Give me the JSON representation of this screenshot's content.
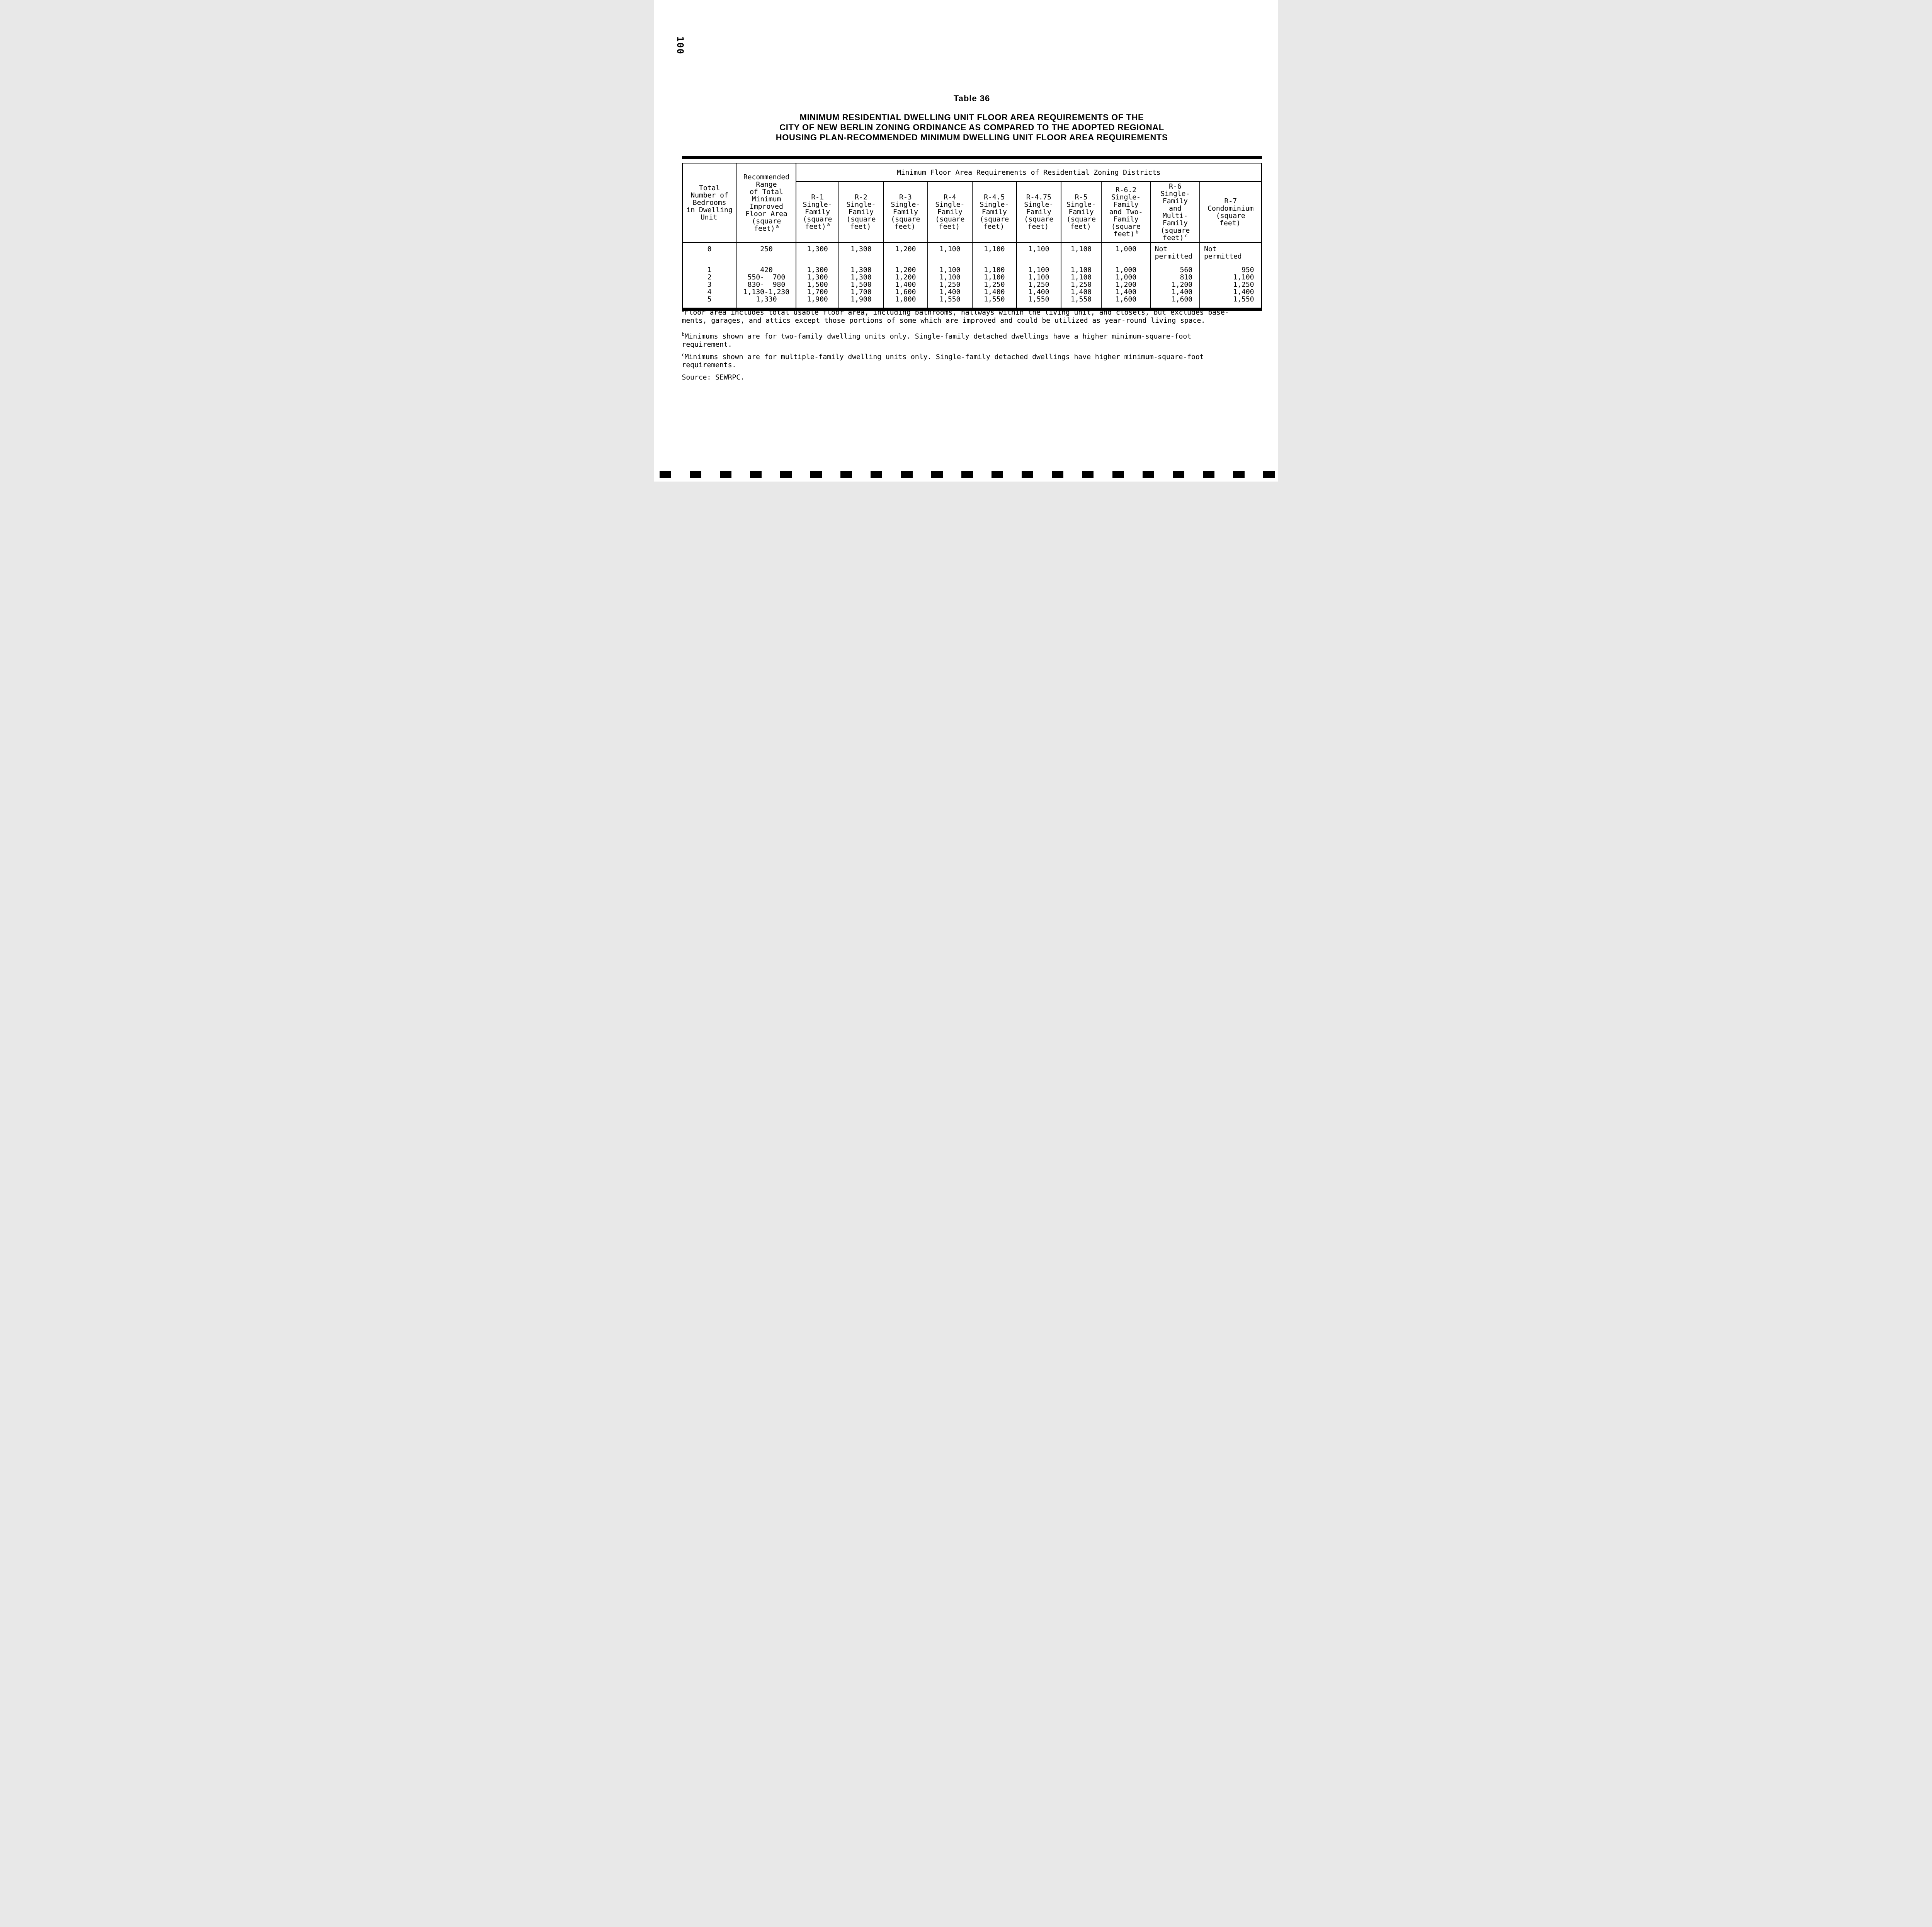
{
  "colors": {
    "paper": "#ffffff",
    "ink": "#000000"
  },
  "page_number": "100",
  "caption": "Table 36",
  "title_lines": [
    "MINIMUM RESIDENTIAL DWELLING UNIT FLOOR AREA REQUIREMENTS OF THE",
    "CITY OF NEW BERLIN ZONING ORDINANCE AS COMPARED TO THE ADOPTED REGIONAL",
    "HOUSING PLAN-RECOMMENDED MINIMUM DWELLING UNIT FLOOR AREA REQUIREMENTS"
  ],
  "table": {
    "span_header": "Minimum Floor Area Requirements of Residential Zoning Districts",
    "row_header": {
      "pre": "Total\nNumber of\nBedrooms\nin Dwelling",
      "last": "Unit",
      "sup": ""
    },
    "rec_range": {
      "pre": "Recommended\nRange\nof Total\nMinimum\nImproved\nFloor Area\n(square",
      "last": "feet)",
      "sup": "a"
    },
    "cols": [
      {
        "pre": "R-1\nSingle-\nFamily\n(square",
        "last": "feet)",
        "sup": "a"
      },
      {
        "pre": "R-2\nSingle-\nFamily\n(square",
        "last": "feet)",
        "sup": ""
      },
      {
        "pre": "R-3\nSingle-\nFamily\n(square",
        "last": "feet)",
        "sup": ""
      },
      {
        "pre": "R-4\nSingle-\nFamily\n(square",
        "last": "feet)",
        "sup": ""
      },
      {
        "pre": "R-4.5\nSingle-\nFamily\n(square",
        "last": "feet)",
        "sup": ""
      },
      {
        "pre": "R-4.75\nSingle-\nFamily\n(square",
        "last": "feet)",
        "sup": ""
      },
      {
        "pre": "R-5\nSingle-\nFamily\n(square",
        "last": "feet)",
        "sup": ""
      },
      {
        "pre": "R-6.2\nSingle-\nFamily\nand Two-\nFamily\n(square",
        "last": "feet)",
        "sup": "b"
      },
      {
        "pre": "R-6\nSingle-\nFamily\nand\nMulti-\nFamily\n(square",
        "last": "feet)",
        "sup": "c"
      },
      {
        "pre": "R-7\nCondominium\n(square",
        "last": "feet)",
        "sup": ""
      }
    ],
    "rows": [
      [
        "0",
        "250",
        "1,300",
        "1,300",
        "1,200",
        "1,100",
        "1,100",
        "1,100",
        "1,100",
        "1,000",
        "Not\npermitted",
        "Not\npermitted"
      ],
      [
        "1",
        "420",
        "1,300",
        "1,300",
        "1,200",
        "1,100",
        "1,100",
        "1,100",
        "1,100",
        "1,000",
        "560",
        "950"
      ],
      [
        "2",
        "550-  700",
        "1,300",
        "1,300",
        "1,200",
        "1,100",
        "1,100",
        "1,100",
        "1,100",
        "1,000",
        "810",
        "1,100"
      ],
      [
        "3",
        "830-  980",
        "1,500",
        "1,500",
        "1,400",
        "1,250",
        "1,250",
        "1,250",
        "1,250",
        "1,200",
        "1,200",
        "1,250"
      ],
      [
        "4",
        "1,130-1,230",
        "1,700",
        "1,700",
        "1,600",
        "1,400",
        "1,400",
        "1,400",
        "1,400",
        "1,400",
        "1,400",
        "1,400"
      ],
      [
        "5",
        "1,330",
        "1,900",
        "1,900",
        "1,800",
        "1,550",
        "1,550",
        "1,550",
        "1,550",
        "1,600",
        "1,600",
        "1,550"
      ]
    ]
  },
  "footnotes": [
    {
      "marker": "a",
      "text": "Floor area includes total usable floor area, including bathrooms, hallways within the living unit, and closets, but excludes base-\nments, garages, and attics except those portions of some which are improved and could be utilized as year-round living space."
    },
    {
      "marker": "b",
      "text": "Minimums shown are for two-family dwelling units only. Single-family detached dwellings have a higher minimum-square-foot\nrequirement."
    },
    {
      "marker": "c",
      "text": "Minimums shown are for multiple-family dwelling units only. Single-family detached dwellings have higher minimum-square-foot\nrequirements."
    }
  ],
  "source": "Source: SEWRPC.",
  "bottom_marks": {
    "count": 21
  }
}
